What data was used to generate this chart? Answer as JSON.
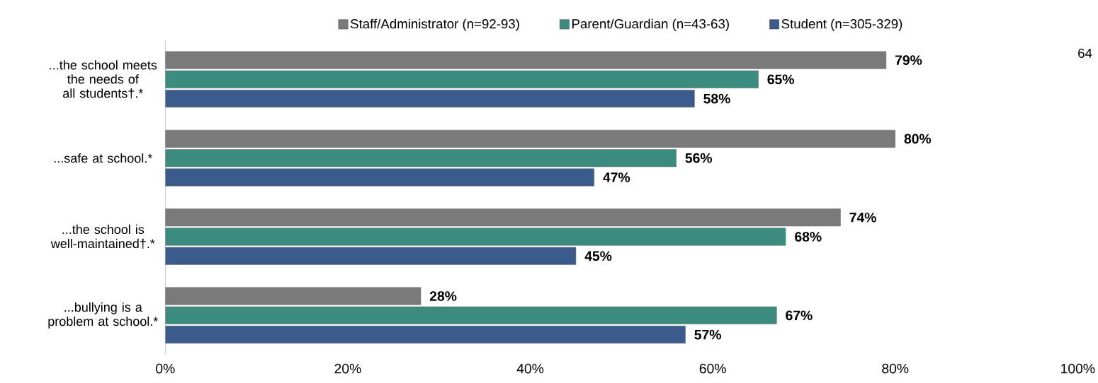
{
  "chart_data": {
    "type": "bar",
    "orientation": "horizontal",
    "categories": [
      "...the school meets the needs of all students†.*",
      "...safe at school.*",
      "...the school is well-maintained†.*",
      "...bullying is a problem at school.*"
    ],
    "series": [
      {
        "name": "Staff/Administrator (n=92-93)",
        "color": "#7a7a7a",
        "values": [
          79,
          80,
          74,
          28
        ],
        "value_labels": [
          "79%",
          "80%",
          "74%",
          "28%"
        ]
      },
      {
        "name": "Parent/Guardian (n=43-63)",
        "color": "#3b8c7e",
        "values": [
          65,
          56,
          68,
          67
        ],
        "value_labels": [
          "65%",
          "56%",
          "68%",
          "67%"
        ]
      },
      {
        "name": "Student (n=305-329)",
        "color": "#3a5b8c",
        "values": [
          58,
          47,
          45,
          57
        ],
        "value_labels": [
          "58%",
          "47%",
          "45%",
          "57%"
        ]
      }
    ],
    "xlim": [
      0,
      100
    ],
    "xticks": [
      {
        "value": 0,
        "label": "0%"
      },
      {
        "value": 20,
        "label": "20%"
      },
      {
        "value": 40,
        "label": "40%"
      },
      {
        "value": 60,
        "label": "60%"
      },
      {
        "value": 80,
        "label": "80%"
      },
      {
        "value": 100,
        "label": "100%"
      }
    ],
    "legend": "top",
    "grid": false,
    "annotations": [
      "64"
    ]
  }
}
